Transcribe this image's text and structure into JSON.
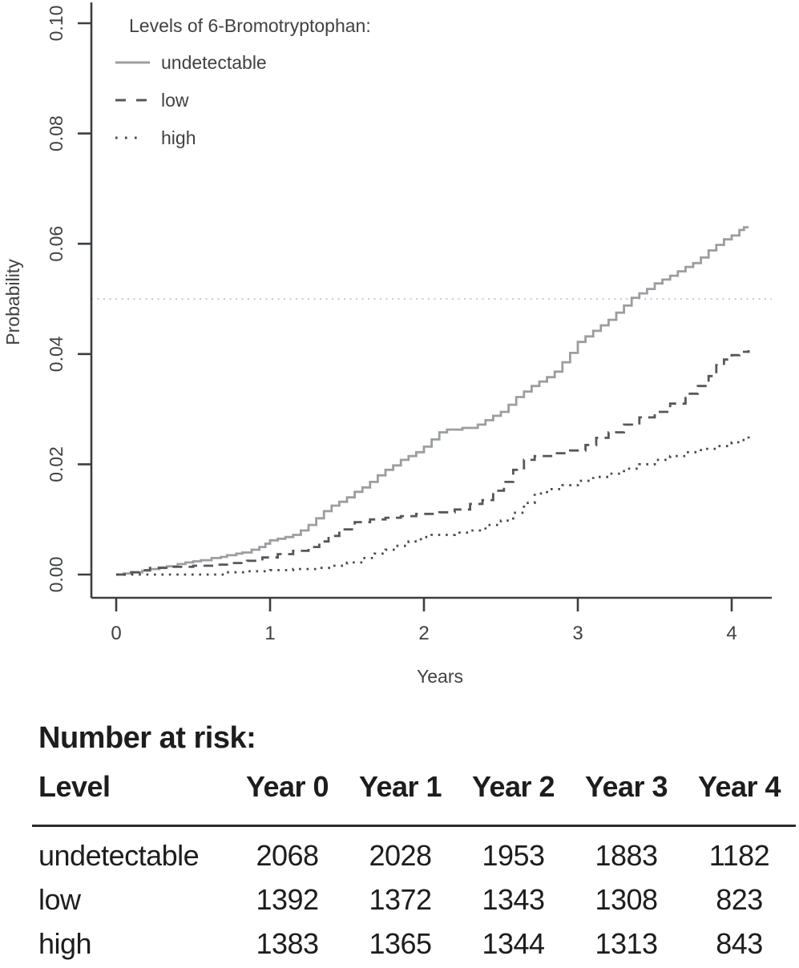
{
  "chart_data": {
    "type": "line",
    "subtype": "cumulative-incidence-step-curves",
    "title": "",
    "xlabel": "Years",
    "ylabel": "Probability",
    "xlim": [
      0,
      4.25
    ],
    "ylim": [
      0,
      0.1
    ],
    "x_ticks": [
      "0",
      "1",
      "2",
      "3",
      "4"
    ],
    "y_ticks": [
      "0.00",
      "0.02",
      "0.04",
      "0.06",
      "0.08",
      "0.10"
    ],
    "grid": false,
    "reference_line_y": 0.05,
    "legend_position": "top-left",
    "legend_title": "Levels of 6-Bromotryptophan:",
    "axis_color": "#3b3e40",
    "text_color": "#3f4244",
    "reference_line_color": "#c9cacb",
    "series": [
      {
        "name": "undetectable",
        "style": "solid",
        "color": "#9b9ea1",
        "points": [
          [
            0,
            0
          ],
          [
            0.05,
            0.0002
          ],
          [
            0.1,
            0.0004
          ],
          [
            0.17,
            0.0007
          ],
          [
            0.22,
            0.001
          ],
          [
            0.28,
            0.0013
          ],
          [
            0.33,
            0.0015
          ],
          [
            0.4,
            0.0019
          ],
          [
            0.45,
            0.0022
          ],
          [
            0.5,
            0.0024
          ],
          [
            0.55,
            0.0026
          ],
          [
            0.62,
            0.003
          ],
          [
            0.68,
            0.0032
          ],
          [
            0.72,
            0.0035
          ],
          [
            0.78,
            0.0038
          ],
          [
            0.82,
            0.004
          ],
          [
            0.88,
            0.0045
          ],
          [
            0.93,
            0.005
          ],
          [
            0.97,
            0.0056
          ],
          [
            1.0,
            0.0062
          ],
          [
            1.05,
            0.0065
          ],
          [
            1.1,
            0.0068
          ],
          [
            1.15,
            0.0072
          ],
          [
            1.2,
            0.008
          ],
          [
            1.25,
            0.009
          ],
          [
            1.3,
            0.0102
          ],
          [
            1.35,
            0.0115
          ],
          [
            1.4,
            0.0125
          ],
          [
            1.45,
            0.0132
          ],
          [
            1.5,
            0.014
          ],
          [
            1.55,
            0.015
          ],
          [
            1.6,
            0.0158
          ],
          [
            1.65,
            0.0168
          ],
          [
            1.7,
            0.018
          ],
          [
            1.75,
            0.019
          ],
          [
            1.8,
            0.0198
          ],
          [
            1.85,
            0.0208
          ],
          [
            1.9,
            0.0215
          ],
          [
            1.95,
            0.0222
          ],
          [
            2.0,
            0.0232
          ],
          [
            2.05,
            0.0245
          ],
          [
            2.1,
            0.0258
          ],
          [
            2.15,
            0.0263
          ],
          [
            2.25,
            0.0266
          ],
          [
            2.35,
            0.0272
          ],
          [
            2.4,
            0.028
          ],
          [
            2.45,
            0.0288
          ],
          [
            2.5,
            0.0295
          ],
          [
            2.55,
            0.0308
          ],
          [
            2.6,
            0.0322
          ],
          [
            2.65,
            0.0332
          ],
          [
            2.7,
            0.0342
          ],
          [
            2.75,
            0.035
          ],
          [
            2.8,
            0.0358
          ],
          [
            2.85,
            0.0368
          ],
          [
            2.9,
            0.0385
          ],
          [
            2.95,
            0.0402
          ],
          [
            3.0,
            0.0422
          ],
          [
            3.05,
            0.0432
          ],
          [
            3.1,
            0.0442
          ],
          [
            3.15,
            0.0452
          ],
          [
            3.2,
            0.0462
          ],
          [
            3.25,
            0.0475
          ],
          [
            3.3,
            0.0488
          ],
          [
            3.35,
            0.0502
          ],
          [
            3.4,
            0.051
          ],
          [
            3.45,
            0.0518
          ],
          [
            3.5,
            0.0528
          ],
          [
            3.55,
            0.0535
          ],
          [
            3.6,
            0.0542
          ],
          [
            3.65,
            0.055
          ],
          [
            3.7,
            0.0558
          ],
          [
            3.75,
            0.0565
          ],
          [
            3.8,
            0.0575
          ],
          [
            3.85,
            0.0588
          ],
          [
            3.9,
            0.0598
          ],
          [
            3.95,
            0.0608
          ],
          [
            4.0,
            0.0615
          ],
          [
            4.05,
            0.0625
          ],
          [
            4.08,
            0.063
          ],
          [
            4.11,
            0.063
          ]
        ]
      },
      {
        "name": "low",
        "style": "dashed",
        "color": "#55585b",
        "points": [
          [
            0,
            0
          ],
          [
            0.08,
            0.0004
          ],
          [
            0.15,
            0.0008
          ],
          [
            0.22,
            0.0012
          ],
          [
            0.35,
            0.0014
          ],
          [
            0.5,
            0.0016
          ],
          [
            0.65,
            0.0018
          ],
          [
            0.75,
            0.0021
          ],
          [
            0.85,
            0.0025
          ],
          [
            0.95,
            0.0031
          ],
          [
            1.05,
            0.0037
          ],
          [
            1.15,
            0.0043
          ],
          [
            1.25,
            0.005
          ],
          [
            1.32,
            0.006
          ],
          [
            1.38,
            0.007
          ],
          [
            1.45,
            0.0082
          ],
          [
            1.55,
            0.0095
          ],
          [
            1.65,
            0.01
          ],
          [
            1.75,
            0.0103
          ],
          [
            1.85,
            0.0106
          ],
          [
            1.95,
            0.011
          ],
          [
            2.1,
            0.0113
          ],
          [
            2.2,
            0.0118
          ],
          [
            2.3,
            0.0128
          ],
          [
            2.38,
            0.0135
          ],
          [
            2.45,
            0.0152
          ],
          [
            2.52,
            0.0168
          ],
          [
            2.58,
            0.019
          ],
          [
            2.65,
            0.0208
          ],
          [
            2.72,
            0.0215
          ],
          [
            2.85,
            0.022
          ],
          [
            2.95,
            0.0225
          ],
          [
            3.05,
            0.0235
          ],
          [
            3.12,
            0.0248
          ],
          [
            3.2,
            0.0258
          ],
          [
            3.3,
            0.0272
          ],
          [
            3.4,
            0.0285
          ],
          [
            3.5,
            0.0295
          ],
          [
            3.6,
            0.031
          ],
          [
            3.7,
            0.0328
          ],
          [
            3.78,
            0.0342
          ],
          [
            3.85,
            0.036
          ],
          [
            3.9,
            0.038
          ],
          [
            3.95,
            0.039
          ],
          [
            4.0,
            0.0398
          ],
          [
            4.05,
            0.0404
          ],
          [
            4.11,
            0.0407
          ]
        ]
      },
      {
        "name": "high",
        "style": "dotted",
        "color": "#46484b",
        "points": [
          [
            0,
            0
          ],
          [
            0.72,
            0.0004
          ],
          [
            0.85,
            0.0006
          ],
          [
            1.0,
            0.0008
          ],
          [
            1.15,
            0.001
          ],
          [
            1.3,
            0.0012
          ],
          [
            1.4,
            0.0016
          ],
          [
            1.5,
            0.0022
          ],
          [
            1.6,
            0.003
          ],
          [
            1.68,
            0.0038
          ],
          [
            1.75,
            0.0045
          ],
          [
            1.82,
            0.0052
          ],
          [
            1.9,
            0.006
          ],
          [
            1.98,
            0.0068
          ],
          [
            2.05,
            0.0072
          ],
          [
            2.2,
            0.0076
          ],
          [
            2.3,
            0.008
          ],
          [
            2.4,
            0.009
          ],
          [
            2.5,
            0.0098
          ],
          [
            2.58,
            0.0112
          ],
          [
            2.65,
            0.013
          ],
          [
            2.72,
            0.0147
          ],
          [
            2.8,
            0.0155
          ],
          [
            2.9,
            0.0162
          ],
          [
            3.0,
            0.017
          ],
          [
            3.1,
            0.0177
          ],
          [
            3.2,
            0.0183
          ],
          [
            3.3,
            0.0192
          ],
          [
            3.4,
            0.02
          ],
          [
            3.5,
            0.0208
          ],
          [
            3.6,
            0.0215
          ],
          [
            3.7,
            0.0222
          ],
          [
            3.8,
            0.0228
          ],
          [
            3.9,
            0.0233
          ],
          [
            4.0,
            0.024
          ],
          [
            4.05,
            0.0244
          ],
          [
            4.11,
            0.0252
          ]
        ]
      }
    ]
  },
  "risk_table": {
    "title": "Number at risk:",
    "columns": [
      "Level",
      "Year 0",
      "Year 1",
      "Year 2",
      "Year 3",
      "Year 4"
    ],
    "rows": [
      {
        "level": "undetectable",
        "values": [
          "2068",
          "2028",
          "1953",
          "1883",
          "1182"
        ]
      },
      {
        "level": "low",
        "values": [
          "1392",
          "1372",
          "1343",
          "1308",
          "823"
        ]
      },
      {
        "level": "high",
        "values": [
          "1383",
          "1365",
          "1344",
          "1313",
          "843"
        ]
      }
    ]
  }
}
